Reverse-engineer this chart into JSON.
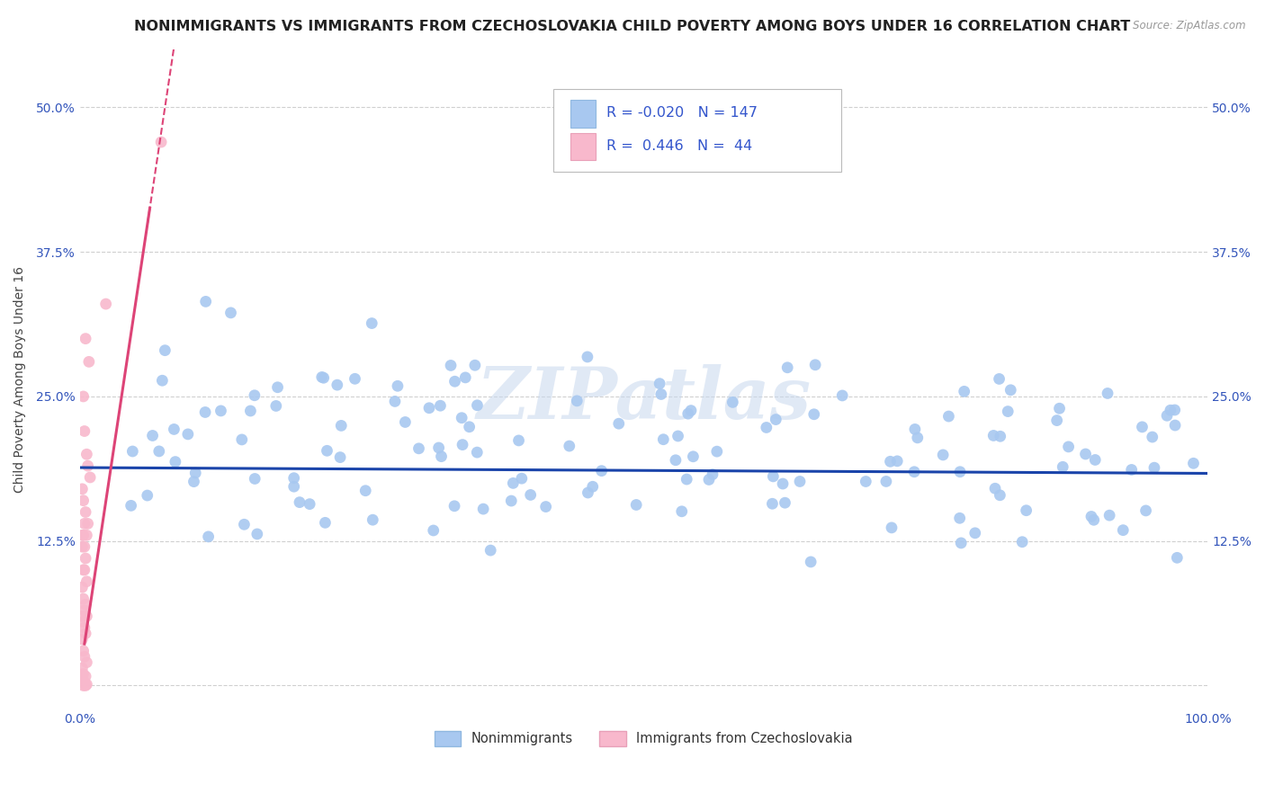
{
  "title": "NONIMMIGRANTS VS IMMIGRANTS FROM CZECHOSLOVAKIA CHILD POVERTY AMONG BOYS UNDER 16 CORRELATION CHART",
  "source": "Source: ZipAtlas.com",
  "ylabel": "Child Poverty Among Boys Under 16",
  "xlim": [
    0,
    1.0
  ],
  "ylim": [
    -0.02,
    0.55
  ],
  "yticks": [
    0.0,
    0.125,
    0.25,
    0.375,
    0.5
  ],
  "ytick_labels": [
    "",
    "12.5%",
    "25.0%",
    "37.5%",
    "50.0%"
  ],
  "xtick_labels": [
    "0.0%",
    "",
    "",
    "",
    "100.0%"
  ],
  "watermark": "ZIPatlas",
  "background_color": "#ffffff",
  "grid_color": "#d0d0d0",
  "scatter_blue_color": "#a8c8f0",
  "scatter_pink_color": "#f8b8cc",
  "line_blue_color": "#1a44aa",
  "line_pink_color": "#dd4477",
  "title_color": "#222222",
  "tick_color": "#3355bb",
  "ylabel_color": "#444444",
  "legend_text_color": "#3355cc",
  "source_color": "#999999",
  "bottom_legend_color": "#333333",
  "title_fontsize": 11.5,
  "axis_label_fontsize": 10,
  "tick_fontsize": 10,
  "legend_fontsize": 11.5
}
